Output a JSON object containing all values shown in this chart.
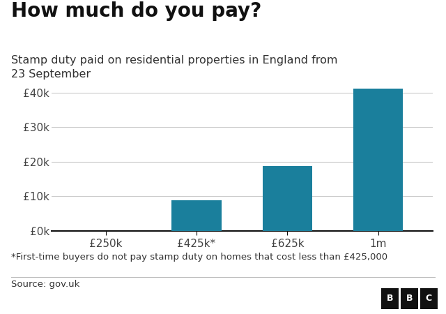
{
  "title": "How much do you pay?",
  "subtitle": "Stamp duty paid on residential properties in England from\n23 September",
  "categories": [
    "£250k",
    "£425k*",
    "£625k",
    "1m"
  ],
  "values": [
    0,
    8750,
    18750,
    41250
  ],
  "bar_color": "#1a7f9c",
  "background_color": "#ffffff",
  "yticks": [
    0,
    10000,
    20000,
    30000,
    40000
  ],
  "ytick_labels": [
    "£0k",
    "£10k",
    "£20k",
    "£30k",
    "£40k"
  ],
  "ylim": [
    0,
    45000
  ],
  "footnote": "*First-time buyers do not pay stamp duty on homes that cost less than £425,000",
  "source": "Source: gov.uk",
  "title_fontsize": 20,
  "subtitle_fontsize": 11.5,
  "tick_fontsize": 11,
  "footnote_fontsize": 9.5,
  "source_fontsize": 9.5,
  "bar_width": 0.55
}
